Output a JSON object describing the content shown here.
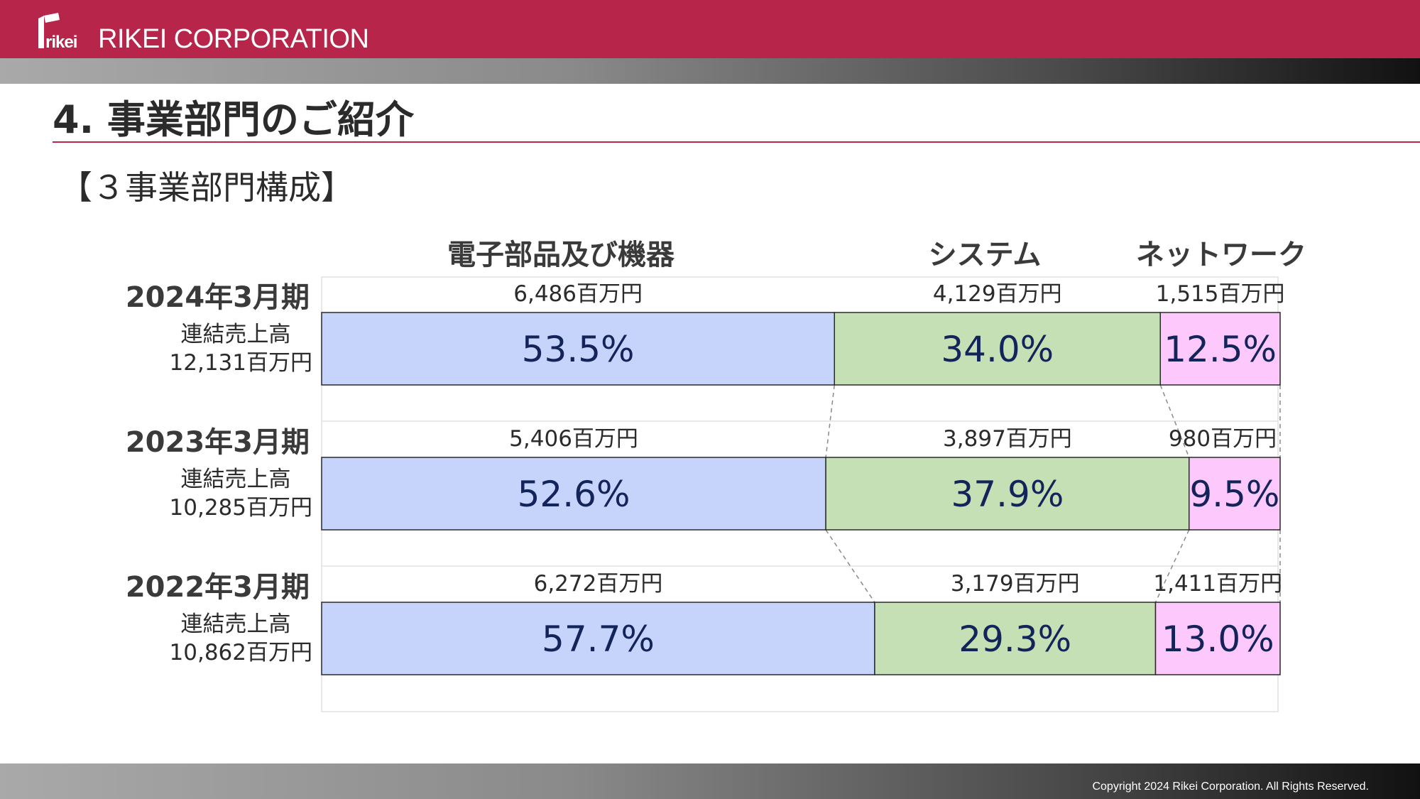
{
  "header": {
    "logo_text": "rikei",
    "company_name": "RIKEI CORPORATION",
    "logo_color": "#b7264a"
  },
  "page": {
    "title": "4. 事業部門のご紹介",
    "subtitle": "【３事業部門構成】"
  },
  "footer": {
    "copyright": "Copyright 2024 Rikei Corporation. All Rights Reserved."
  },
  "chart_data": {
    "type": "bar",
    "orientation": "horizontal",
    "stacked": true,
    "xlim": [
      0,
      100
    ],
    "title": "",
    "category_headers": [
      "電子部品及び機器",
      "システム",
      "ネットワーク"
    ],
    "series_colors": [
      "#c6d4fb",
      "#c5e0b4",
      "#fdc8fb"
    ],
    "rows": [
      {
        "period": "2024年3月期",
        "label": "連結売上高",
        "total": "12,131百万円",
        "segments": [
          {
            "percent": 53.5,
            "percent_label": "53.5%",
            "amount": "6,486百万円"
          },
          {
            "percent": 34.0,
            "percent_label": "34.0%",
            "amount": "4,129百万円"
          },
          {
            "percent": 12.5,
            "percent_label": "12.5%",
            "amount": "1,515百万円"
          }
        ]
      },
      {
        "period": "2023年3月期",
        "label": "連結売上高",
        "total": "10,285百万円",
        "segments": [
          {
            "percent": 52.6,
            "percent_label": "52.6%",
            "amount": "5,406百万円"
          },
          {
            "percent": 37.9,
            "percent_label": "37.9%",
            "amount": "3,897百万円"
          },
          {
            "percent": 9.5,
            "percent_label": "9.5%",
            "amount": "980百万円"
          }
        ]
      },
      {
        "period": "2022年3月期",
        "label": "連結売上高",
        "total": "10,862百万円",
        "segments": [
          {
            "percent": 57.7,
            "percent_label": "57.7%",
            "amount": "6,272百万円"
          },
          {
            "percent": 29.3,
            "percent_label": "29.3%",
            "amount": "3,179百万円"
          },
          {
            "percent": 13.0,
            "percent_label": "13.0%",
            "amount": "1,411百万円"
          }
        ]
      }
    ]
  }
}
